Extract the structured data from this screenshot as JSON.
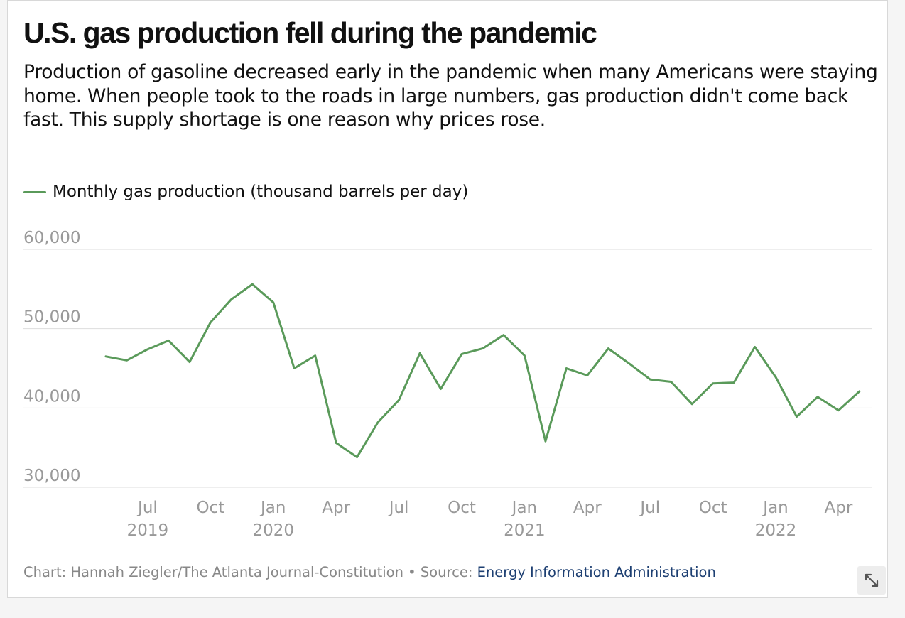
{
  "title": "U.S. gas production fell during the pandemic",
  "subtitle": "Production of gasoline decreased early in the pandemic when many Americans were staying home. When people took to the roads in large numbers, gas production didn't come back fast. This supply shortage is one reason why prices rose.",
  "colors": {
    "series": "#5a9a5a",
    "grid": "#dddddd",
    "tick_text": "#999999",
    "source_link": "#1d3f72"
  },
  "footer": {
    "credit": "Chart: Hannah Ziegler/The Atlanta Journal-Constitution",
    "separator": " • ",
    "source_label": "Source: ",
    "source_name": "Energy Information Administration"
  },
  "expand_button": {
    "icon": "expand-arrows-icon"
  },
  "chart_data": {
    "type": "line",
    "title": "U.S. gas production fell during the pandemic",
    "xlabel": "",
    "ylabel": "",
    "ylim": [
      30000,
      60000
    ],
    "yticks": [
      {
        "value": 60000,
        "label": "60,000"
      },
      {
        "value": 50000,
        "label": "50,000"
      },
      {
        "value": 40000,
        "label": "40,000"
      },
      {
        "value": 30000,
        "label": "30,000"
      }
    ],
    "xticks": [
      {
        "date": "2019-07",
        "month": "Jul",
        "year": "2019"
      },
      {
        "date": "2019-10",
        "month": "Oct",
        "year": ""
      },
      {
        "date": "2020-01",
        "month": "Jan",
        "year": "2020"
      },
      {
        "date": "2020-04",
        "month": "Apr",
        "year": ""
      },
      {
        "date": "2020-07",
        "month": "Jul",
        "year": ""
      },
      {
        "date": "2020-10",
        "month": "Oct",
        "year": ""
      },
      {
        "date": "2021-01",
        "month": "Jan",
        "year": "2021"
      },
      {
        "date": "2021-04",
        "month": "Apr",
        "year": ""
      },
      {
        "date": "2021-07",
        "month": "Jul",
        "year": ""
      },
      {
        "date": "2021-10",
        "month": "Oct",
        "year": ""
      },
      {
        "date": "2022-01",
        "month": "Jan",
        "year": "2022"
      },
      {
        "date": "2022-04",
        "month": "Apr",
        "year": ""
      }
    ],
    "grid": true,
    "legend": "top-left",
    "series": [
      {
        "name": "Monthly gas production (thousand barrels per day)",
        "points": [
          {
            "date": "2019-05",
            "value": 46500
          },
          {
            "date": "2019-06",
            "value": 46000
          },
          {
            "date": "2019-07",
            "value": 47400
          },
          {
            "date": "2019-08",
            "value": 48500
          },
          {
            "date": "2019-09",
            "value": 45800
          },
          {
            "date": "2019-10",
            "value": 50800
          },
          {
            "date": "2019-11",
            "value": 53700
          },
          {
            "date": "2019-12",
            "value": 55600
          },
          {
            "date": "2020-01",
            "value": 53300
          },
          {
            "date": "2020-02",
            "value": 45000
          },
          {
            "date": "2020-03",
            "value": 46600
          },
          {
            "date": "2020-04",
            "value": 35600
          },
          {
            "date": "2020-05",
            "value": 33800
          },
          {
            "date": "2020-06",
            "value": 38200
          },
          {
            "date": "2020-07",
            "value": 41000
          },
          {
            "date": "2020-08",
            "value": 46900
          },
          {
            "date": "2020-09",
            "value": 42400
          },
          {
            "date": "2020-10",
            "value": 46800
          },
          {
            "date": "2020-11",
            "value": 47500
          },
          {
            "date": "2020-12",
            "value": 49200
          },
          {
            "date": "2021-01",
            "value": 46600
          },
          {
            "date": "2021-02",
            "value": 35800
          },
          {
            "date": "2021-03",
            "value": 45000
          },
          {
            "date": "2021-04",
            "value": 44100
          },
          {
            "date": "2021-05",
            "value": 47500
          },
          {
            "date": "2021-06",
            "value": 45600
          },
          {
            "date": "2021-07",
            "value": 43600
          },
          {
            "date": "2021-08",
            "value": 43300
          },
          {
            "date": "2021-09",
            "value": 40500
          },
          {
            "date": "2021-10",
            "value": 43100
          },
          {
            "date": "2021-11",
            "value": 43200
          },
          {
            "date": "2021-12",
            "value": 47700
          },
          {
            "date": "2022-01",
            "value": 43900
          },
          {
            "date": "2022-02",
            "value": 38900
          },
          {
            "date": "2022-03",
            "value": 41400
          },
          {
            "date": "2022-04",
            "value": 39700
          },
          {
            "date": "2022-05",
            "value": 42100
          }
        ]
      }
    ]
  }
}
